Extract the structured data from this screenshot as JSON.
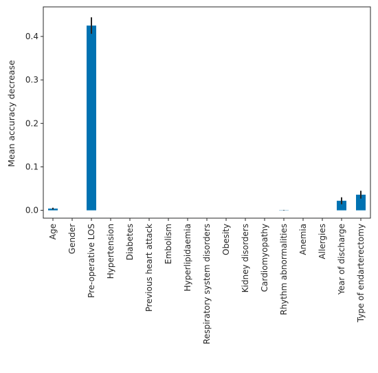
{
  "chart_data": {
    "type": "bar",
    "title": "",
    "xlabel": "",
    "ylabel": "Mean accuracy decrease",
    "ylim": [
      -0.018,
      0.468
    ],
    "yticks": [
      0.0,
      0.1,
      0.2,
      0.3,
      0.4
    ],
    "ytick_labels": [
      "0.0",
      "0.1",
      "0.2",
      "0.3",
      "0.4"
    ],
    "grid": false,
    "bar_color": "#0072b2",
    "error_color": "#262626",
    "categories": [
      "Age",
      "Gender",
      "Pre-operative LOS",
      "Hypertension",
      "Diabetes",
      "Previous heart attack",
      "Embolism",
      "Hyperlipidaemia",
      "Respiratory system disorders",
      "Obesity",
      "Kidney disorders",
      "Cardiomyopathy",
      "Rhythm abnormalities",
      "Anemia",
      "Allergies",
      "Year of discharge",
      "Type of endarterectomy"
    ],
    "values": [
      0.004,
      0.0,
      0.425,
      0.0,
      0.0,
      0.0,
      0.0,
      0.0,
      0.0,
      0.0,
      0.0,
      0.0,
      0.0005,
      0.0,
      0.0,
      0.022,
      0.036
    ],
    "errors": [
      0.002,
      0.0,
      0.019,
      0.0,
      0.0,
      0.0,
      0.0,
      0.0,
      0.0,
      0.0,
      0.0,
      0.0,
      0.0005,
      0.0,
      0.0,
      0.008,
      0.009
    ]
  }
}
